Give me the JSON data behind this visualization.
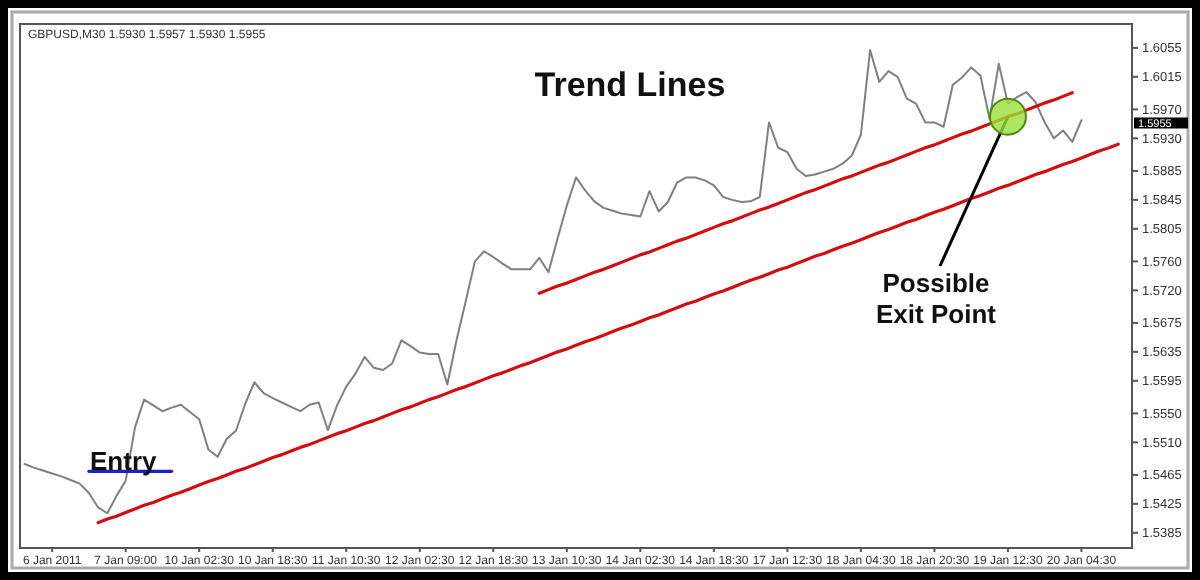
{
  "chart_data": {
    "type": "line",
    "title": "Trend Lines",
    "annotations": [
      "GBPUSD,M30  1.5930 1.5957 1.5930 1.5955",
      "Entry",
      {
        "text": "Possible Exit Point",
        "x": "19 Jan 12:30",
        "y": 1.596
      },
      "1.5955"
    ],
    "categories": [
      null,
      null,
      null,
      "6 Jan 2011",
      null,
      null,
      null,
      null,
      null,
      null,
      null,
      "7 Jan 09:00",
      null,
      null,
      null,
      null,
      null,
      null,
      null,
      "10 Jan 02:30",
      null,
      null,
      null,
      null,
      null,
      null,
      null,
      "10 Jan 18:30",
      null,
      null,
      null,
      null,
      null,
      null,
      null,
      "11 Jan 10:30",
      null,
      null,
      null,
      null,
      null,
      null,
      null,
      "12 Jan 02:30",
      null,
      null,
      null,
      null,
      null,
      null,
      null,
      "12 Jan 18:30",
      null,
      null,
      null,
      null,
      null,
      null,
      null,
      "13 Jan 10:30",
      null,
      null,
      null,
      null,
      null,
      null,
      null,
      "14 Jan 02:30",
      null,
      null,
      null,
      null,
      null,
      null,
      null,
      "14 Jan 18:30",
      null,
      null,
      null,
      null,
      null,
      null,
      null,
      "17 Jan 12:30",
      null,
      null,
      null,
      null,
      null,
      null,
      null,
      "18 Jan 04:30",
      null,
      null,
      null,
      null,
      null,
      null,
      null,
      "18 Jan 20:30",
      null,
      null,
      null,
      null,
      null,
      null,
      null,
      "19 Jan 12:30",
      null,
      null,
      null,
      null,
      null,
      null,
      null,
      "20 Jan 04:30",
      null,
      null,
      null,
      null,
      null
    ],
    "ylim": [
      1.5364,
      1.6088
    ],
    "yticks": [
      1.6055,
      1.6015,
      {
        "value": 1.597,
        "label": "1.5970"
      },
      {
        "value": 1.593,
        "label": "1.5930"
      },
      1.5885,
      1.5845,
      1.5805,
      {
        "value": 1.576,
        "label": "1.5760"
      },
      {
        "value": 1.572,
        "label": "1.5720"
      },
      1.5675,
      1.5635,
      1.5595,
      {
        "value": 1.555,
        "label": "1.5550"
      },
      {
        "value": 1.551,
        "label": "1.5510"
      },
      1.5465,
      1.5425,
      1.5385
    ],
    "series": [
      {
        "color": "#808080",
        "values": [
          1.548,
          1.5475,
          1.5471,
          1.5467,
          1.5463,
          1.5458,
          1.5453,
          1.544,
          1.542,
          1.5412,
          1.5436,
          1.5457,
          1.553,
          1.5569,
          1.5561,
          1.5553,
          1.5558,
          1.5562,
          1.5552,
          1.5542,
          1.55,
          1.549,
          1.5515,
          1.5526,
          1.5563,
          1.5593,
          1.5578,
          1.5571,
          1.5565,
          1.5559,
          1.5553,
          1.5562,
          1.5565,
          1.5527,
          1.5561,
          1.5587,
          1.5605,
          1.5628,
          1.5613,
          1.561,
          1.5619,
          1.5651,
          1.5643,
          1.5634,
          1.5632,
          1.5632,
          1.559,
          1.5651,
          1.5705,
          1.576,
          1.5774,
          1.5766,
          1.5757,
          1.5749,
          1.5749,
          1.5749,
          1.5765,
          1.5745,
          1.5792,
          1.5837,
          1.5876,
          1.5858,
          1.5843,
          1.5834,
          1.583,
          1.5826,
          1.5824,
          1.5822,
          1.5857,
          1.5829,
          1.5842,
          1.5869,
          1.5876,
          1.5876,
          1.5872,
          1.5865,
          1.5849,
          1.5845,
          1.5842,
          1.5843,
          1.5849,
          1.5952,
          1.5917,
          1.5911,
          1.5888,
          1.5878,
          1.588,
          1.5884,
          1.5888,
          1.5895,
          1.5906,
          1.5935,
          1.6052,
          1.6008,
          1.6023,
          1.6015,
          1.5985,
          1.5978,
          1.5952,
          1.5952,
          1.5946,
          1.6004,
          1.6014,
          1.6028,
          1.6017,
          1.5957,
          1.6033,
          1.5978,
          1.5987,
          1.5994,
          1.598,
          1.5952,
          1.593,
          1.5941,
          1.5925,
          1.5955,
          null,
          null,
          null,
          null,
          null
        ]
      },
      {
        "color": "#d01010",
        "values": [
          null,
          null,
          null,
          null,
          null,
          null,
          null,
          null,
          null,
          null,
          null,
          null,
          null,
          null,
          null,
          null,
          null,
          null,
          null,
          null,
          null,
          null,
          null,
          null,
          null,
          null,
          null,
          null,
          null,
          null,
          null,
          null,
          null,
          null,
          null,
          null,
          null,
          null,
          null,
          null,
          null,
          null,
          null,
          null,
          null,
          null,
          null,
          null,
          null,
          null,
          null,
          null,
          null,
          null,
          null,
          null,
          1.5716,
          1.5721,
          1.5726,
          1.573,
          1.5735,
          1.574,
          1.5745,
          1.5749,
          1.5754,
          1.5759,
          1.5764,
          1.5769,
          1.5773,
          1.5778,
          1.5783,
          1.5788,
          1.5792,
          1.5797,
          1.5802,
          1.5807,
          1.5812,
          1.5816,
          1.5821,
          1.5826,
          1.5831,
          1.5835,
          1.584,
          1.5845,
          1.585,
          1.5855,
          1.5859,
          1.5864,
          1.5869,
          1.5874,
          1.5878,
          1.5883,
          1.5888,
          1.5893,
          1.5897,
          1.5902,
          1.5907,
          1.5912,
          1.5917,
          1.5921,
          1.5926,
          1.5931,
          1.5936,
          1.594,
          1.5945,
          1.595,
          1.5955,
          1.596,
          1.5964,
          1.5969,
          1.5974,
          1.5979,
          1.5983,
          1.5988,
          1.5993,
          null,
          null,
          null,
          null,
          null,
          null
        ]
      },
      {
        "color": "#d01010",
        "values": [
          null,
          null,
          null,
          null,
          null,
          null,
          null,
          null,
          1.5399,
          1.5404,
          1.5408,
          1.5413,
          1.5418,
          1.5423,
          1.5427,
          1.5432,
          1.5437,
          1.5441,
          1.5446,
          1.5451,
          1.5456,
          1.546,
          1.5465,
          1.547,
          1.5474,
          1.5479,
          1.5484,
          1.5489,
          1.5493,
          1.5498,
          1.5503,
          1.5507,
          1.5512,
          1.5517,
          1.5522,
          1.5526,
          1.5531,
          1.5536,
          1.554,
          1.5545,
          1.555,
          1.5555,
          1.5559,
          1.5564,
          1.5569,
          1.5573,
          1.5578,
          1.5583,
          1.5587,
          1.5592,
          1.5597,
          1.5602,
          1.5606,
          1.5611,
          1.5616,
          1.562,
          1.5625,
          1.563,
          1.5635,
          1.5639,
          1.5644,
          1.5649,
          1.5653,
          1.5658,
          1.5663,
          1.5668,
          1.5672,
          1.5677,
          1.5682,
          1.5686,
          1.5691,
          1.5696,
          1.5701,
          1.5705,
          1.571,
          1.5715,
          1.5719,
          1.5724,
          1.5729,
          1.5734,
          1.5738,
          1.5743,
          1.5748,
          1.5752,
          1.5757,
          1.5762,
          1.5767,
          1.5771,
          1.5776,
          1.5781,
          1.5785,
          1.579,
          1.5795,
          1.58,
          1.5804,
          1.5809,
          1.5814,
          1.5818,
          1.5823,
          1.5828,
          1.5832,
          1.5837,
          1.5842,
          1.5847,
          1.5851,
          1.5856,
          1.5861,
          1.5865,
          1.587,
          1.5875,
          1.588,
          1.5884,
          1.5889,
          1.5894,
          1.5898,
          1.5903,
          1.5908,
          1.5913,
          1.5917,
          1.5922,
          null
        ]
      },
      {
        "color": "#2020c0",
        "values": [
          null,
          null,
          null,
          null,
          null,
          null,
          null,
          1.547,
          1.547,
          1.547,
          1.547,
          1.547,
          1.547,
          1.547,
          1.547,
          1.547,
          1.547,
          null,
          null,
          null,
          null,
          null,
          null,
          null,
          null,
          null,
          null,
          null,
          null,
          null,
          null,
          null,
          null,
          null,
          null,
          null,
          null,
          null,
          null,
          null,
          null,
          null,
          null,
          null,
          null,
          null,
          null,
          null,
          null,
          null,
          null,
          null,
          null,
          null,
          null,
          null,
          null,
          null,
          null,
          null,
          null,
          null,
          null,
          null,
          null,
          null,
          null,
          null,
          null,
          null,
          null,
          null,
          null,
          null,
          null,
          null,
          null,
          null,
          null,
          null,
          null,
          null,
          null,
          null,
          null,
          null,
          null,
          null,
          null,
          null,
          null,
          null,
          null,
          null,
          null,
          null,
          null,
          null,
          null,
          null,
          null,
          null,
          null,
          null,
          null,
          null,
          null,
          null,
          null,
          null,
          null,
          null,
          null,
          null,
          null,
          null,
          null,
          null,
          null,
          null,
          null
        ]
      }
    ]
  }
}
